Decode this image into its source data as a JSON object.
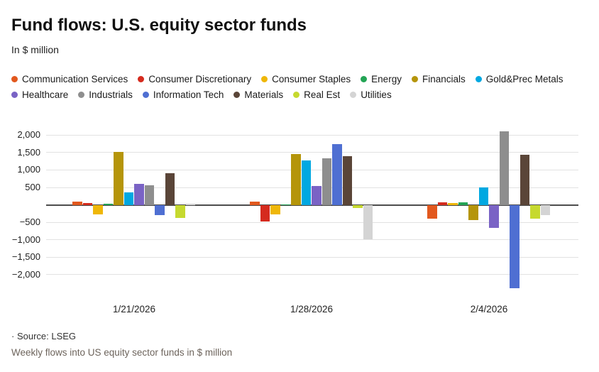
{
  "title": "Fund flows: U.S. equity sector funds",
  "subtitle": "In $ million",
  "source": "· Source: LSEG",
  "caption": "Weekly flows into US equity sector funds in $ million",
  "colors": {
    "caption_text": "#6d645c",
    "grid_line": "#e2e2e2",
    "zero_line": "#4d4d4d",
    "text": "#1a1a1a"
  },
  "chart_data": {
    "type": "bar",
    "title": "Fund flows: U.S. equity sector funds",
    "ylabel": "In $ million",
    "categories": [
      "1/21/2026",
      "1/28/2026",
      "2/4/2026"
    ],
    "series": [
      {
        "name": "Communication Services",
        "color": "#e2581e",
        "values": [
          90,
          90,
          -390
        ]
      },
      {
        "name": "Consumer Discretionary",
        "color": "#d52b1e",
        "values": [
          60,
          -480,
          70
        ]
      },
      {
        "name": "Consumer Staples",
        "color": "#efb708",
        "values": [
          -280,
          -270,
          50
        ]
      },
      {
        "name": "Energy",
        "color": "#23a455",
        "values": [
          40,
          20,
          70
        ]
      },
      {
        "name": "Financials",
        "color": "#b5950a",
        "values": [
          1510,
          1450,
          -430
        ]
      },
      {
        "name": "Gold&Prec Metals",
        "color": "#00a8e1",
        "values": [
          350,
          1270,
          510
        ]
      },
      {
        "name": "Healthcare",
        "color": "#7a63c5",
        "values": [
          600,
          540,
          -650
        ]
      },
      {
        "name": "Industrials",
        "color": "#8e8e8e",
        "values": [
          570,
          1340,
          2100
        ]
      },
      {
        "name": "Information Tech",
        "color": "#4f6fd2",
        "values": [
          -300,
          1750,
          -2380
        ]
      },
      {
        "name": "Materials",
        "color": "#5a4538",
        "values": [
          900,
          1390,
          1440
        ]
      },
      {
        "name": "Real Est",
        "color": "#c6d92f",
        "values": [
          -370,
          -90,
          -400
        ]
      },
      {
        "name": "Utilities",
        "color": "#d4d4d4",
        "values": [
          30,
          -980,
          -300
        ]
      }
    ],
    "y_ticks": [
      2000,
      1500,
      1000,
      500,
      0,
      -500,
      -1000,
      -1500,
      -2000
    ],
    "ylim": [
      -2550,
      2250
    ],
    "grid": true,
    "legend_position": "top",
    "legend_rows": [
      6,
      6
    ]
  }
}
